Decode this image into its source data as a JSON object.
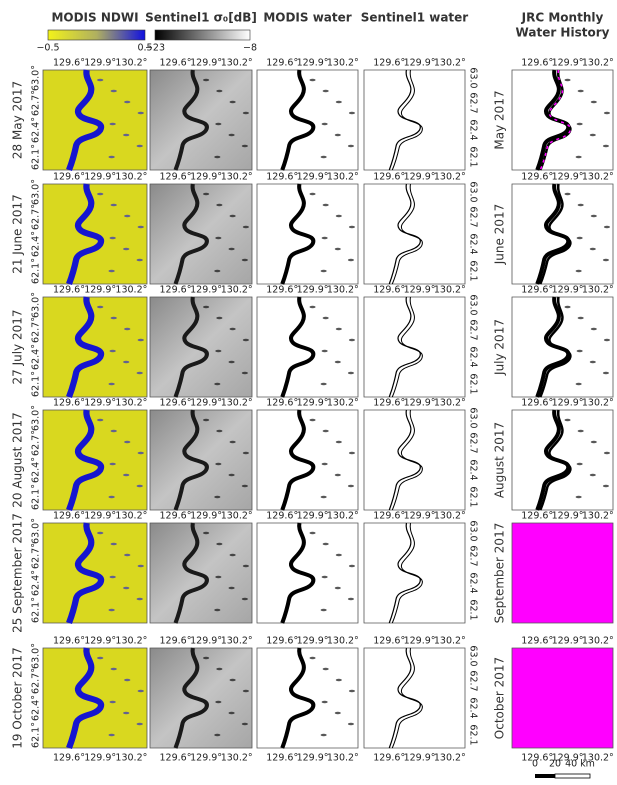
{
  "columns": [
    "MODIS NDWI",
    "Sentinel1 σ₀[dB]",
    "MODIS water",
    "Sentinel1 water",
    [
      "JRC  Monthly",
      "Water History"
    ]
  ],
  "colorbars": [
    {
      "min": "−0.5",
      "max": "0.5"
    },
    {
      "min": "−23",
      "max": "−8"
    }
  ],
  "rows": [
    {
      "date": "28 May 2017",
      "jrc": "May 2017"
    },
    {
      "date": "21 June 2017",
      "jrc": "June 2017"
    },
    {
      "date": "27 July 2017",
      "jrc": "July 2017"
    },
    {
      "date": "20 August 2017",
      "jrc": "August 2017"
    },
    {
      "date": "25 September 2017",
      "jrc": "September 2017"
    },
    {
      "date": "19 October 2017",
      "jrc": "October 2017"
    }
  ],
  "lon_ticks": [
    "129.6°",
    "129.9°",
    "130.2°"
  ],
  "lat_ticks_left": [
    "63.0°",
    "62.7°",
    "62.4°",
    "62.1°"
  ],
  "lat_ticks_right": [
    "63.0",
    "62.7",
    "62.4",
    "62.1"
  ],
  "scale_bar": [
    "0",
    "20",
    "40 km"
  ]
}
